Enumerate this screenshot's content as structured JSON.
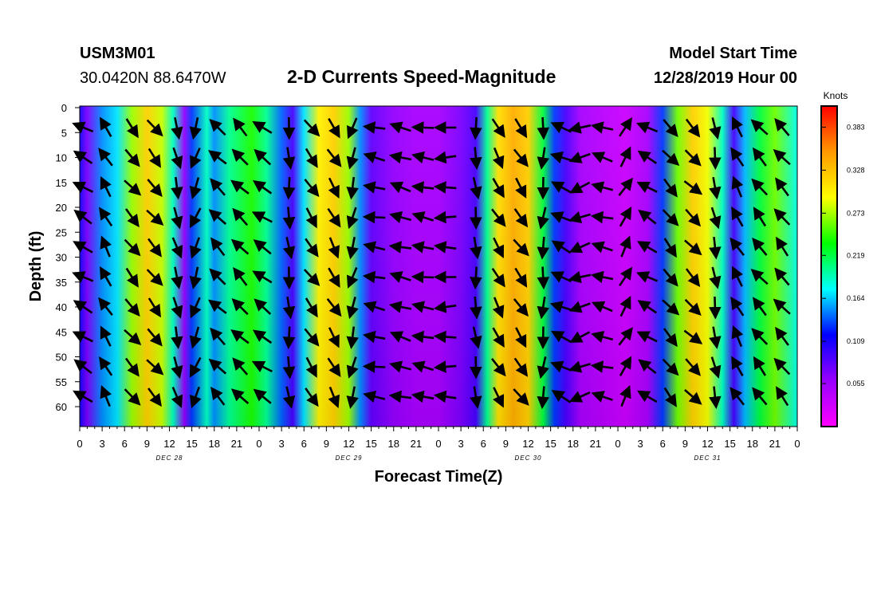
{
  "header": {
    "station_id": "USM3M01",
    "station_coords": "30.0420N 88.6470W",
    "title": "2-D Currents Speed-Magnitude",
    "start_label": "Model Start Time",
    "start_value": "12/28/2019 Hour 00"
  },
  "chart_data": {
    "type": "heatmap",
    "title": "2-D Currents Speed-Magnitude",
    "xlabel": "Forecast Time(Z)",
    "ylabel": "Depth (ft)",
    "colorbar_label": "Knots",
    "xlim": [
      0,
      96
    ],
    "ylim": [
      0,
      64
    ],
    "x_tick_values": [
      0,
      3,
      6,
      9,
      12,
      15,
      18,
      21,
      24,
      27,
      30,
      33,
      36,
      39,
      42,
      45,
      48,
      51,
      54,
      57,
      60,
      63,
      66,
      69,
      72,
      75,
      78,
      81,
      84,
      87,
      90,
      93,
      96
    ],
    "x_tick_labels": [
      "0",
      "3",
      "6",
      "9",
      "12",
      "15",
      "18",
      "21",
      "0",
      "3",
      "6",
      "9",
      "12",
      "15",
      "18",
      "21",
      "0",
      "3",
      "6",
      "9",
      "12",
      "15",
      "18",
      "21",
      "0",
      "3",
      "6",
      "9",
      "12",
      "15",
      "18",
      "21",
      "0"
    ],
    "day_labels": [
      {
        "hour": 12,
        "label": "DEC 28"
      },
      {
        "hour": 36,
        "label": "DEC 29"
      },
      {
        "hour": 60,
        "label": "DEC 30"
      },
      {
        "hour": 84,
        "label": "DEC 31"
      }
    ],
    "y_tick_values": [
      0,
      5,
      10,
      15,
      20,
      25,
      30,
      35,
      40,
      45,
      50,
      55,
      60
    ],
    "y_tick_labels": [
      "0",
      "5",
      "10",
      "15",
      "20",
      "25",
      "30",
      "35",
      "40",
      "45",
      "50",
      "55",
      "60"
    ],
    "colorbar_ticks": [
      0.055,
      0.109,
      0.164,
      0.219,
      0.273,
      0.328,
      0.383
    ],
    "colorbar_tick_labels": [
      "0.055",
      "0.109",
      "0.164",
      "0.219",
      "0.273",
      "0.328",
      "0.383"
    ],
    "colorbar_range": [
      0,
      0.41
    ],
    "colormap": [
      "#ff00ff",
      "#9900ff",
      "#0000ff",
      "#00ffff",
      "#00ff00",
      "#ffff00",
      "#ff9900",
      "#ff0000"
    ],
    "speed_profile": [
      {
        "hour": 0,
        "speed": 0.11
      },
      {
        "hour": 1,
        "speed": 0.07
      },
      {
        "hour": 3,
        "speed": 0.15
      },
      {
        "hour": 5,
        "speed": 0.17
      },
      {
        "hour": 7,
        "speed": 0.27
      },
      {
        "hour": 9,
        "speed": 0.32
      },
      {
        "hour": 11,
        "speed": 0.28
      },
      {
        "hour": 12.5,
        "speed": 0.19
      },
      {
        "hour": 14,
        "speed": 0.06
      },
      {
        "hour": 15,
        "speed": 0.13
      },
      {
        "hour": 17,
        "speed": 0.19
      },
      {
        "hour": 18,
        "speed": 0.15
      },
      {
        "hour": 20,
        "speed": 0.2
      },
      {
        "hour": 23,
        "speed": 0.24
      },
      {
        "hour": 25,
        "speed": 0.2
      },
      {
        "hour": 27,
        "speed": 0.14
      },
      {
        "hour": 28.5,
        "speed": 0.09
      },
      {
        "hour": 30,
        "speed": 0.17
      },
      {
        "hour": 32,
        "speed": 0.3
      },
      {
        "hour": 34,
        "speed": 0.32
      },
      {
        "hour": 36,
        "speed": 0.27
      },
      {
        "hour": 37.5,
        "speed": 0.15
      },
      {
        "hour": 39,
        "speed": 0.08
      },
      {
        "hour": 42,
        "speed": 0.06
      },
      {
        "hour": 45,
        "speed": 0.05
      },
      {
        "hour": 48,
        "speed": 0.05
      },
      {
        "hour": 51,
        "speed": 0.07
      },
      {
        "hour": 53,
        "speed": 0.09
      },
      {
        "hour": 54.5,
        "speed": 0.2
      },
      {
        "hour": 56,
        "speed": 0.31
      },
      {
        "hour": 58,
        "speed": 0.34
      },
      {
        "hour": 60,
        "speed": 0.32
      },
      {
        "hour": 62,
        "speed": 0.22
      },
      {
        "hour": 63.5,
        "speed": 0.13
      },
      {
        "hour": 65,
        "speed": 0.09
      },
      {
        "hour": 67,
        "speed": 0.05
      },
      {
        "hour": 70,
        "speed": 0.04
      },
      {
        "hour": 73,
        "speed": 0.03
      },
      {
        "hour": 76,
        "speed": 0.05
      },
      {
        "hour": 78,
        "speed": 0.13
      },
      {
        "hour": 80,
        "speed": 0.26
      },
      {
        "hour": 82,
        "speed": 0.32
      },
      {
        "hour": 84,
        "speed": 0.29
      },
      {
        "hour": 86,
        "speed": 0.19
      },
      {
        "hour": 87.5,
        "speed": 0.09
      },
      {
        "hour": 89,
        "speed": 0.16
      },
      {
        "hour": 91,
        "speed": 0.22
      },
      {
        "hour": 93,
        "speed": 0.26
      },
      {
        "hour": 96,
        "speed": 0.18
      }
    ],
    "vector_columns": [
      {
        "hour": 0.5,
        "dir_deg": 300
      },
      {
        "hour": 3.5,
        "dir_deg": 330
      },
      {
        "hour": 7,
        "dir_deg": 140
      },
      {
        "hour": 10,
        "dir_deg": 140
      },
      {
        "hour": 13,
        "dir_deg": 165
      },
      {
        "hour": 15.5,
        "dir_deg": 200
      },
      {
        "hour": 18.5,
        "dir_deg": 315
      },
      {
        "hour": 21.5,
        "dir_deg": 315
      },
      {
        "hour": 24.5,
        "dir_deg": 305
      },
      {
        "hour": 28,
        "dir_deg": 175
      },
      {
        "hour": 31,
        "dir_deg": 145
      },
      {
        "hour": 34,
        "dir_deg": 150
      },
      {
        "hour": 36.5,
        "dir_deg": 195
      },
      {
        "hour": 39.5,
        "dir_deg": 280
      },
      {
        "hour": 43,
        "dir_deg": 285
      },
      {
        "hour": 46,
        "dir_deg": 280
      },
      {
        "hour": 49,
        "dir_deg": 270
      },
      {
        "hour": 53,
        "dir_deg": 175
      },
      {
        "hour": 56,
        "dir_deg": 150
      },
      {
        "hour": 59,
        "dir_deg": 145
      },
      {
        "hour": 62,
        "dir_deg": 185
      },
      {
        "hour": 64.5,
        "dir_deg": 295
      },
      {
        "hour": 67,
        "dir_deg": 250
      },
      {
        "hour": 70,
        "dir_deg": 285
      },
      {
        "hour": 73,
        "dir_deg": 30
      },
      {
        "hour": 76,
        "dir_deg": 300
      },
      {
        "hour": 79,
        "dir_deg": 140
      },
      {
        "hour": 82,
        "dir_deg": 135
      },
      {
        "hour": 85,
        "dir_deg": 170
      },
      {
        "hour": 88,
        "dir_deg": 330
      },
      {
        "hour": 91,
        "dir_deg": 320
      },
      {
        "hour": 94,
        "dir_deg": 320
      }
    ]
  }
}
